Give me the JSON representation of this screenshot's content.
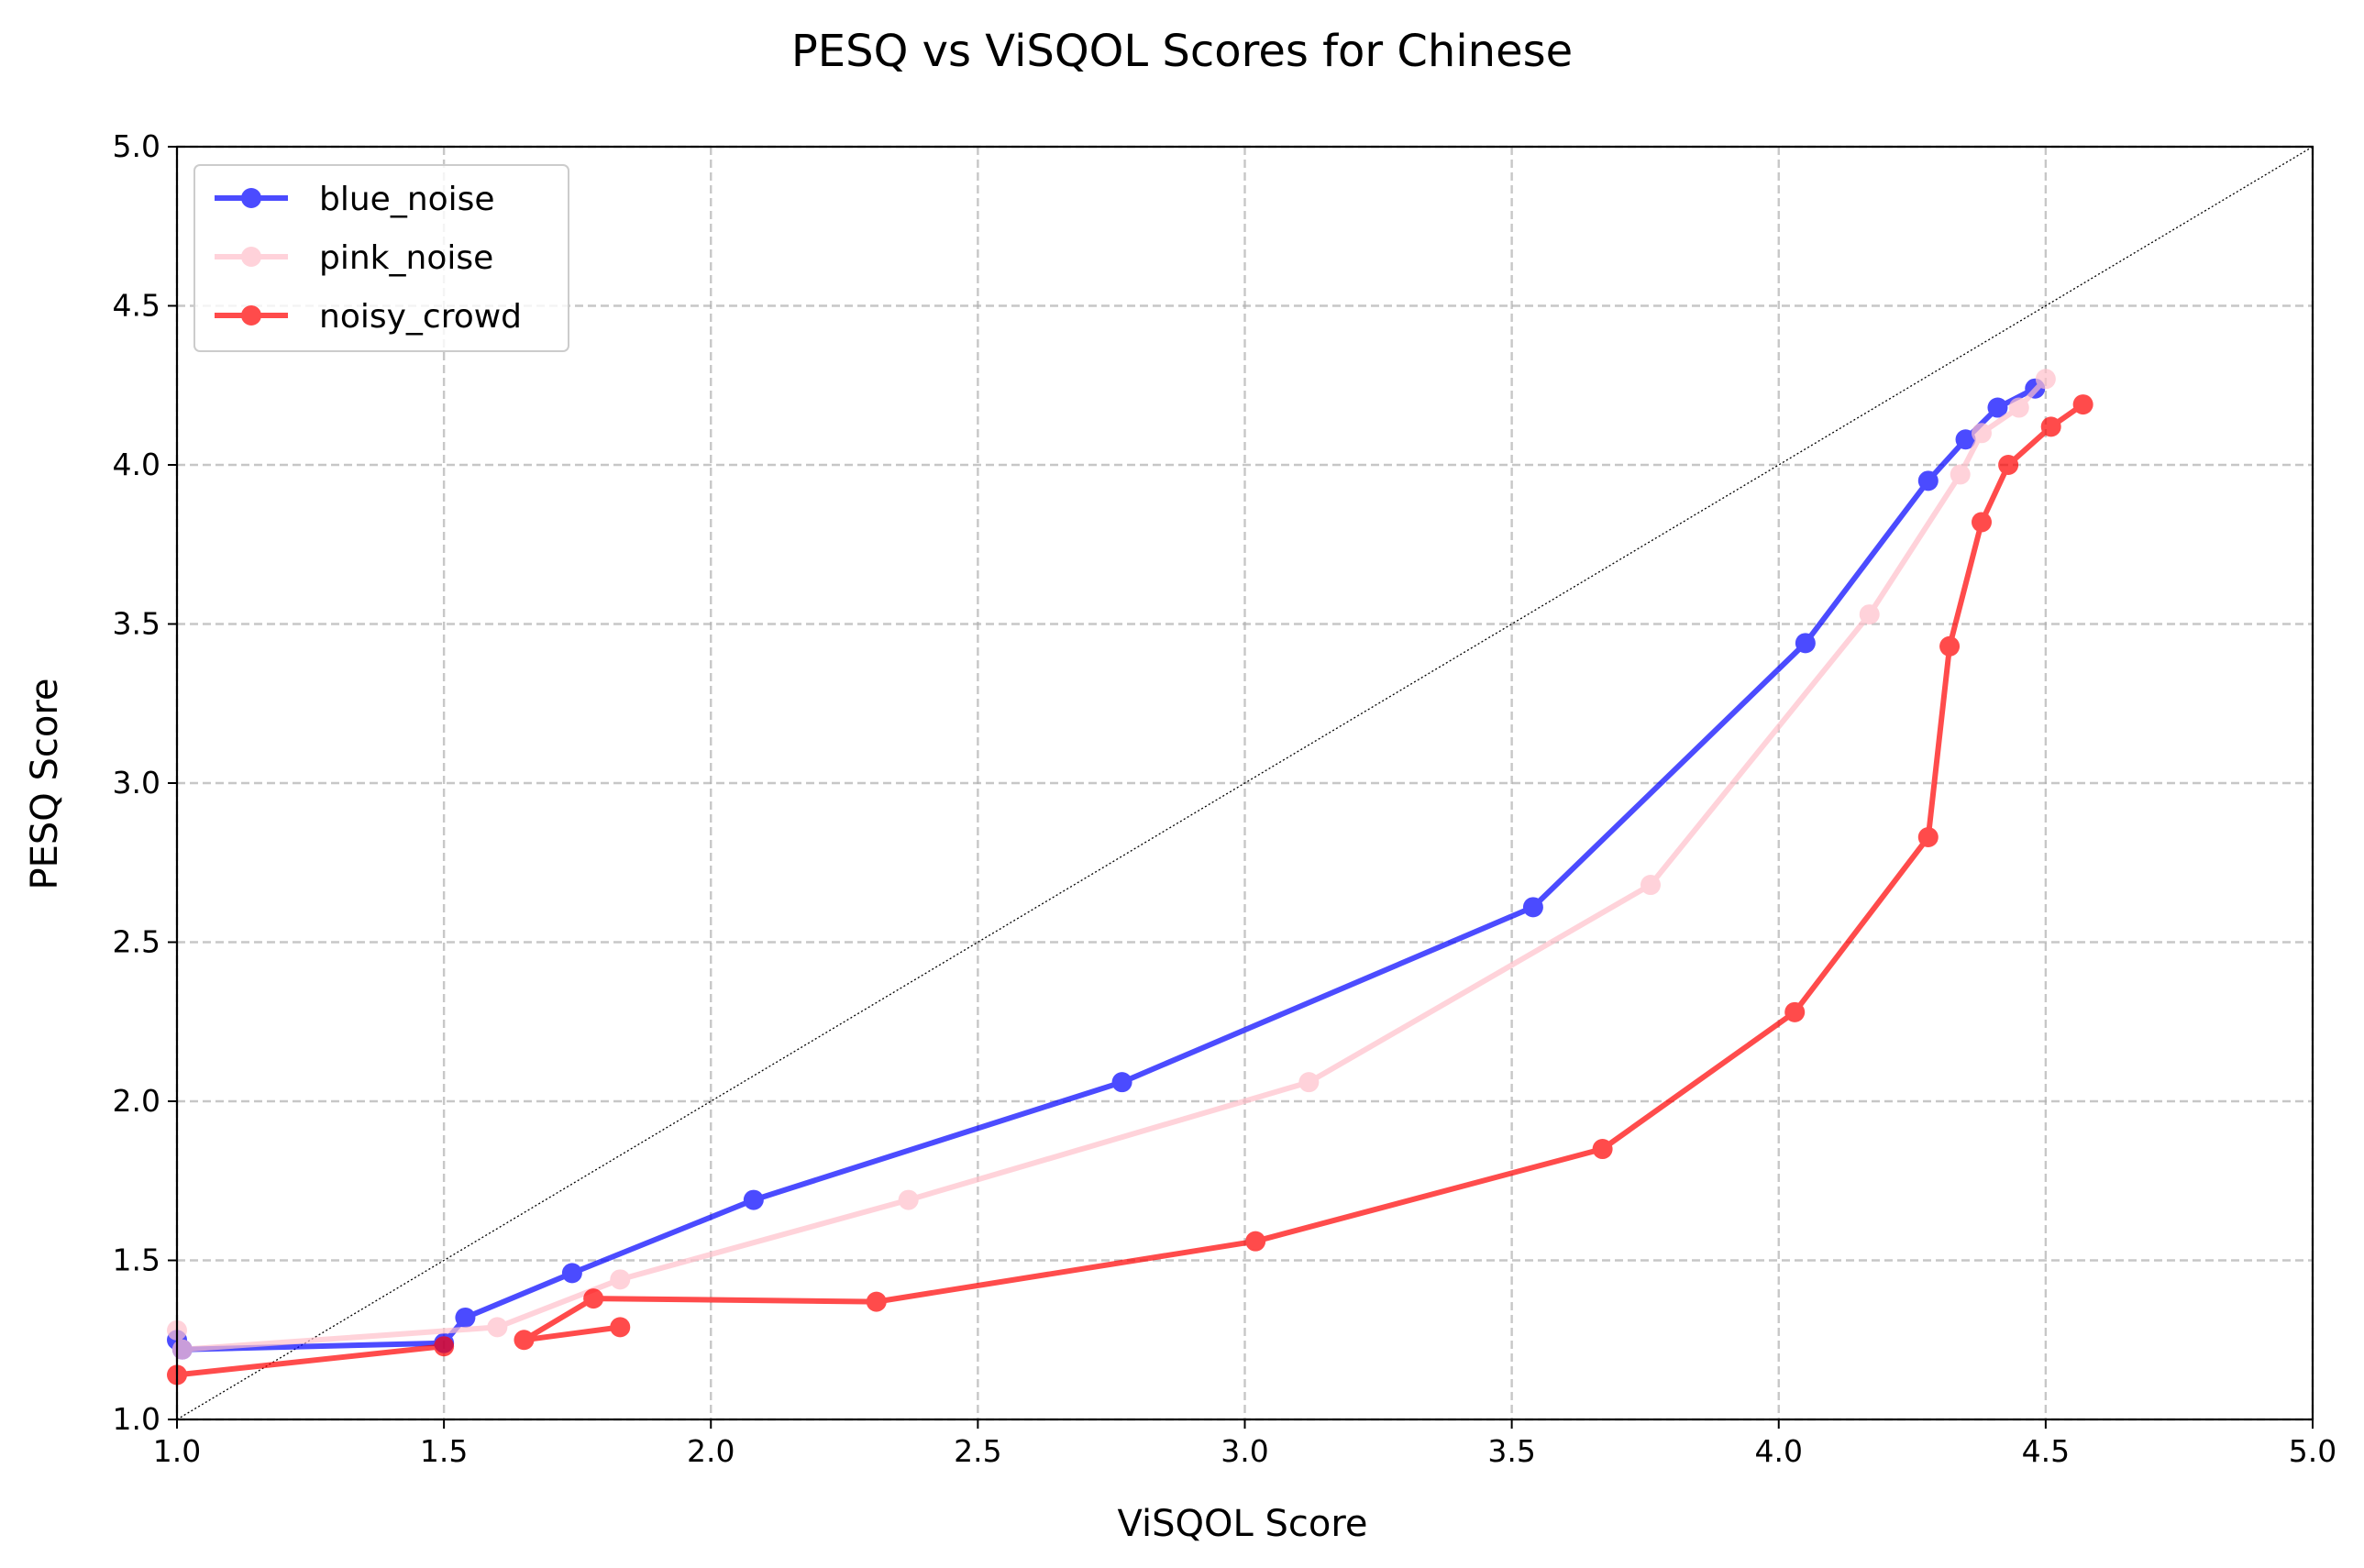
{
  "chart_data": {
    "type": "line",
    "title": "PESQ vs ViSQOL Scores for Chinese",
    "xlabel": "ViSQOL Score",
    "ylabel": "PESQ Score",
    "xlim": [
      1.0,
      5.0
    ],
    "ylim": [
      1.0,
      5.0
    ],
    "xticks": [
      "1.0",
      "1.5",
      "2.0",
      "2.5",
      "3.0",
      "3.5",
      "4.0",
      "4.5",
      "5.0"
    ],
    "yticks": [
      "1.0",
      "1.5",
      "2.0",
      "2.5",
      "3.0",
      "3.5",
      "4.0",
      "4.5",
      "5.0"
    ],
    "grid": true,
    "legend_position": "top-left",
    "reference_line": "y = x",
    "series": [
      {
        "name": "blue_noise",
        "color": "#0000ff",
        "points": [
          [
            1.0,
            1.25
          ],
          [
            1.01,
            1.22
          ],
          [
            1.5,
            1.24
          ],
          [
            1.54,
            1.32
          ],
          [
            1.74,
            1.46
          ],
          [
            2.08,
            1.69
          ],
          [
            2.77,
            2.06
          ],
          [
            3.54,
            2.61
          ],
          [
            4.05,
            3.44
          ],
          [
            4.28,
            3.95
          ],
          [
            4.35,
            4.08
          ],
          [
            4.41,
            4.18
          ],
          [
            4.48,
            4.24
          ]
        ]
      },
      {
        "name": "pink_noise",
        "color": "#ffc0cb",
        "points": [
          [
            1.0,
            1.28
          ],
          [
            1.01,
            1.22
          ],
          [
            1.6,
            1.29
          ],
          [
            1.83,
            1.44
          ],
          [
            2.37,
            1.69
          ],
          [
            3.12,
            2.06
          ],
          [
            3.76,
            2.68
          ],
          [
            4.17,
            3.53
          ],
          [
            4.34,
            3.97
          ],
          [
            4.38,
            4.1
          ],
          [
            4.45,
            4.18
          ],
          [
            4.5,
            4.27
          ]
        ]
      },
      {
        "name": "noisy_crowd",
        "color": "#ff0000",
        "points": [
          [
            1.83,
            1.29
          ],
          [
            1.65,
            1.25
          ],
          [
            1.78,
            1.38
          ],
          [
            2.31,
            1.37
          ],
          [
            3.02,
            1.56
          ],
          [
            3.67,
            1.85
          ],
          [
            4.03,
            2.28
          ],
          [
            4.28,
            2.83
          ],
          [
            4.32,
            3.43
          ],
          [
            4.38,
            3.82
          ],
          [
            4.43,
            4.0
          ],
          [
            4.51,
            4.12
          ],
          [
            4.57,
            4.19
          ]
        ],
        "extra_segment": [
          [
            1.0,
            1.14
          ],
          [
            1.5,
            1.23
          ]
        ]
      }
    ]
  }
}
